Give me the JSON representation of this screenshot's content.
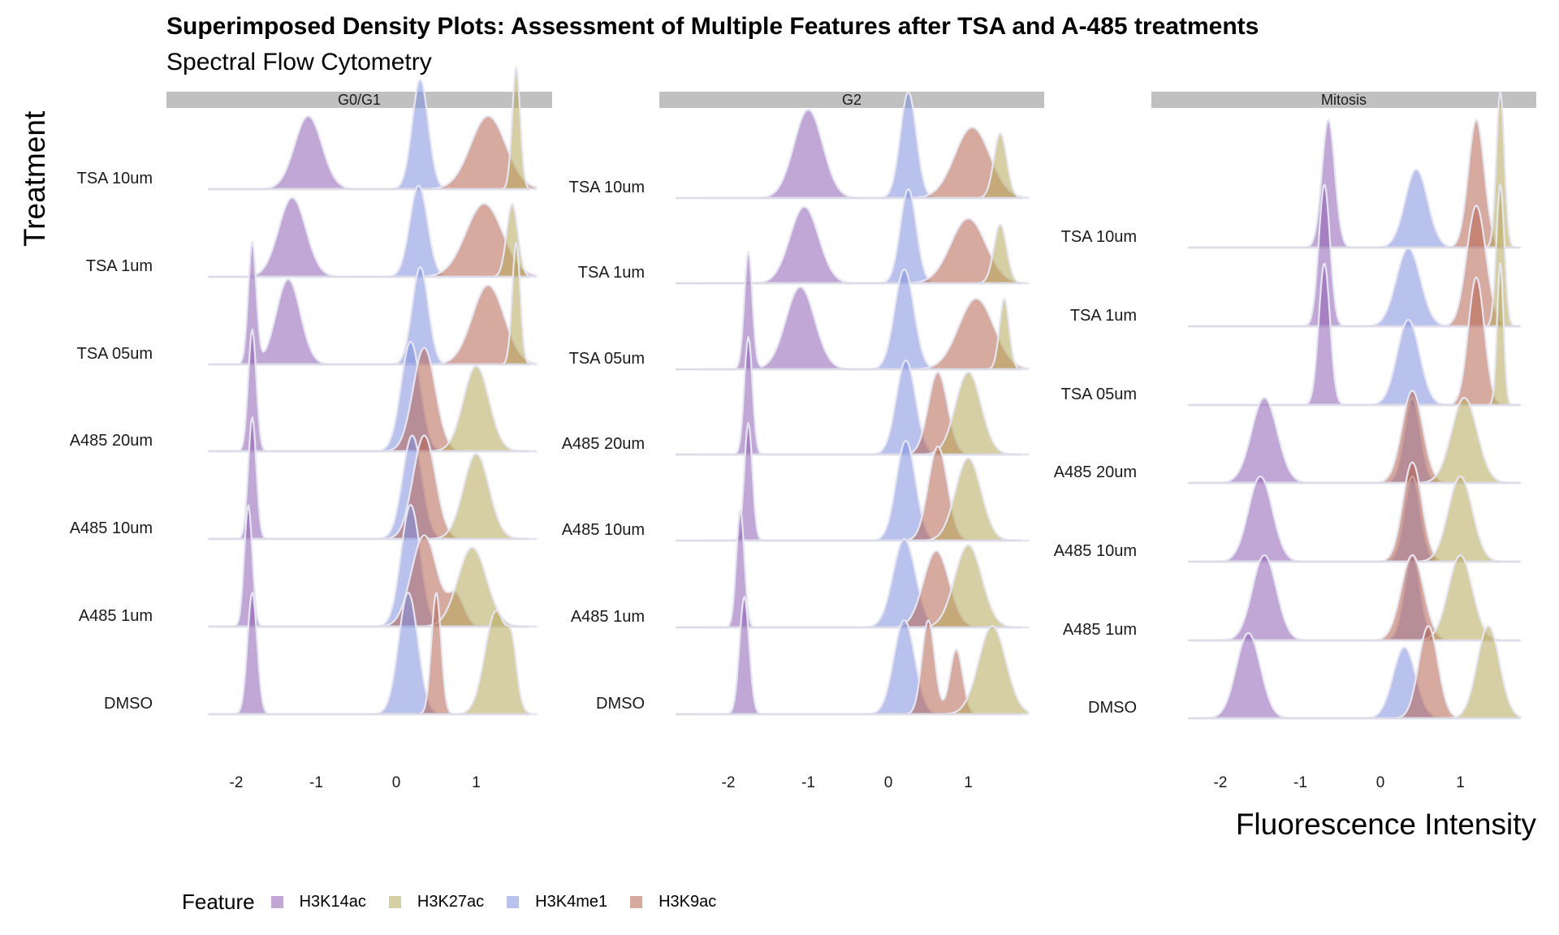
{
  "chart_data": {
    "type": "ridgeline-density",
    "title": "Superimposed Density Plots: Assessment of Multiple Features after TSA and A-485 treatments",
    "subtitle": "Spectral Flow Cytometry",
    "xlabel": "Fluorescence Intensity",
    "ylabel": "Treatment",
    "x_ticks": [
      -2,
      -1,
      0,
      1
    ],
    "xlim": [
      -2.35,
      1.75
    ],
    "treatments": [
      "DMSO",
      "A485 1um",
      "A485 10um",
      "A485 20um",
      "TSA 05um",
      "TSA 1um",
      "TSA 10um"
    ],
    "legend": {
      "title": "Feature",
      "position": "bottom-left",
      "items": [
        {
          "name": "H3K14ac",
          "color": "#8e5fb3"
        },
        {
          "name": "H3K27ac",
          "color": "#b7a75a"
        },
        {
          "name": "H3K4me1",
          "color": "#7f90de"
        },
        {
          "name": "H3K9ac",
          "color": "#b76450"
        }
      ]
    },
    "panels": [
      {
        "facet": "G0/G1",
        "ridges": {
          "DMSO": {
            "H3K14ac": [
              [
                -1.8,
                0.06,
                1
              ]
            ],
            "H3K4me1": [
              [
                0.15,
                0.12,
                1
              ]
            ],
            "H3K9ac": [
              [
                0.5,
                0.06,
                1
              ]
            ],
            "H3K27ac": [
              [
                1.25,
                0.14,
                0.85
              ],
              [
                1.45,
                0.06,
                0.35
              ]
            ]
          },
          "A485 1um": {
            "H3K14ac": [
              [
                -1.85,
                0.05,
                1
              ]
            ],
            "H3K4me1": [
              [
                0.18,
                0.12,
                1
              ]
            ],
            "H3K9ac": [
              [
                0.35,
                0.16,
                0.75
              ],
              [
                0.75,
                0.1,
                0.25
              ]
            ],
            "H3K27ac": [
              [
                0.95,
                0.18,
                0.65
              ]
            ]
          },
          "A485 10um": {
            "H3K14ac": [
              [
                -1.8,
                0.05,
                1
              ]
            ],
            "H3K4me1": [
              [
                0.2,
                0.12,
                0.85
              ]
            ],
            "H3K9ac": [
              [
                0.35,
                0.14,
                0.85
              ]
            ],
            "H3K27ac": [
              [
                1.0,
                0.16,
                0.7
              ]
            ]
          },
          "A485 20um": {
            "H3K14ac": [
              [
                -1.8,
                0.05,
                1
              ]
            ],
            "H3K4me1": [
              [
                0.18,
                0.12,
                0.9
              ]
            ],
            "H3K9ac": [
              [
                0.35,
                0.14,
                0.85
              ]
            ],
            "H3K27ac": [
              [
                1.0,
                0.16,
                0.7
              ]
            ]
          },
          "TSA 05um": {
            "H3K14ac": [
              [
                -1.35,
                0.15,
                0.7
              ],
              [
                -1.8,
                0.05,
                1.0
              ]
            ],
            "H3K4me1": [
              [
                0.3,
                0.1,
                0.8
              ]
            ],
            "H3K9ac": [
              [
                1.15,
                0.2,
                0.65
              ]
            ],
            "H3K27ac": [
              [
                1.5,
                0.05,
                1.0
              ]
            ]
          },
          "TSA 1um": {
            "H3K14ac": [
              [
                -1.3,
                0.17,
                0.65
              ]
            ],
            "H3K4me1": [
              [
                0.28,
                0.11,
                0.75
              ]
            ],
            "H3K9ac": [
              [
                1.1,
                0.23,
                0.6
              ]
            ],
            "H3K27ac": [
              [
                1.45,
                0.07,
                0.6
              ]
            ]
          },
          "TSA 10um": {
            "H3K14ac": [
              [
                -1.1,
                0.17,
                0.6
              ]
            ],
            "H3K4me1": [
              [
                0.3,
                0.1,
                0.9
              ]
            ],
            "H3K9ac": [
              [
                1.15,
                0.22,
                0.6
              ]
            ],
            "H3K27ac": [
              [
                1.5,
                0.05,
                1.0
              ]
            ]
          }
        }
      },
      {
        "facet": "G2",
        "ridges": {
          "DMSO": {
            "H3K14ac": [
              [
                -1.8,
                0.06,
                1
              ]
            ],
            "H3K4me1": [
              [
                0.2,
                0.13,
                0.8
              ]
            ],
            "H3K9ac": [
              [
                0.5,
                0.08,
                0.8
              ],
              [
                0.85,
                0.08,
                0.55
              ]
            ],
            "H3K27ac": [
              [
                1.3,
                0.17,
                0.75
              ]
            ]
          },
          "A485 1um": {
            "H3K14ac": [
              [
                -1.85,
                0.05,
                1
              ]
            ],
            "H3K4me1": [
              [
                0.2,
                0.14,
                0.75
              ]
            ],
            "H3K9ac": [
              [
                0.6,
                0.16,
                0.65
              ]
            ],
            "H3K27ac": [
              [
                1.0,
                0.17,
                0.7
              ]
            ]
          },
          "A485 10um": {
            "H3K14ac": [
              [
                -1.75,
                0.05,
                1
              ]
            ],
            "H3K4me1": [
              [
                0.22,
                0.12,
                0.85
              ]
            ],
            "H3K9ac": [
              [
                0.62,
                0.12,
                0.8
              ]
            ],
            "H3K27ac": [
              [
                1.0,
                0.16,
                0.7
              ]
            ]
          },
          "A485 20um": {
            "H3K14ac": [
              [
                -1.75,
                0.05,
                1
              ]
            ],
            "H3K4me1": [
              [
                0.22,
                0.12,
                0.8
              ]
            ],
            "H3K9ac": [
              [
                0.62,
                0.12,
                0.7
              ]
            ],
            "H3K27ac": [
              [
                1.0,
                0.16,
                0.7
              ]
            ]
          },
          "TSA 05um": {
            "H3K14ac": [
              [
                -1.1,
                0.18,
                0.7
              ],
              [
                -1.75,
                0.05,
                1.0
              ]
            ],
            "H3K4me1": [
              [
                0.2,
                0.12,
                0.85
              ]
            ],
            "H3K9ac": [
              [
                1.1,
                0.22,
                0.6
              ]
            ],
            "H3K27ac": [
              [
                1.45,
                0.06,
                0.6
              ]
            ]
          },
          "TSA 1um": {
            "H3K14ac": [
              [
                -1.05,
                0.18,
                0.65
              ]
            ],
            "H3K4me1": [
              [
                0.25,
                0.1,
                0.8
              ]
            ],
            "H3K9ac": [
              [
                1.0,
                0.22,
                0.55
              ]
            ],
            "H3K27ac": [
              [
                1.4,
                0.08,
                0.5
              ]
            ]
          },
          "TSA 10um": {
            "H3K14ac": [
              [
                -1.0,
                0.18,
                0.75
              ]
            ],
            "H3K4me1": [
              [
                0.25,
                0.1,
                0.9
              ]
            ],
            "H3K9ac": [
              [
                1.05,
                0.22,
                0.6
              ]
            ],
            "H3K27ac": [
              [
                1.4,
                0.08,
                0.55
              ]
            ]
          }
        }
      },
      {
        "facet": "Mitosis",
        "ridges": {
          "DMSO": {
            "H3K14ac": [
              [
                -1.65,
                0.15,
                0.6
              ]
            ],
            "H3K4me1": [
              [
                0.3,
                0.14,
                0.5
              ]
            ],
            "H3K9ac": [
              [
                0.6,
                0.12,
                0.65
              ]
            ],
            "H3K27ac": [
              [
                1.35,
                0.14,
                0.65
              ]
            ]
          },
          "A485 1um": {
            "H3K14ac": [
              [
                -1.45,
                0.15,
                0.6
              ]
            ],
            "H3K4me1": [
              [
                0.4,
                0.1,
                0.6
              ]
            ],
            "H3K9ac": [
              [
                0.4,
                0.14,
                0.6
              ]
            ],
            "H3K27ac": [
              [
                1.0,
                0.15,
                0.6
              ]
            ]
          },
          "A485 10um": {
            "H3K14ac": [
              [
                -1.5,
                0.15,
                0.6
              ]
            ],
            "H3K4me1": [
              [
                0.4,
                0.1,
                0.6
              ]
            ],
            "H3K9ac": [
              [
                0.4,
                0.12,
                0.7
              ]
            ],
            "H3K27ac": [
              [
                1.0,
                0.15,
                0.6
              ]
            ]
          },
          "A485 20um": {
            "H3K14ac": [
              [
                -1.45,
                0.16,
                0.6
              ]
            ],
            "H3K4me1": [
              [
                0.4,
                0.1,
                0.6
              ]
            ],
            "H3K9ac": [
              [
                0.4,
                0.13,
                0.65
              ]
            ],
            "H3K27ac": [
              [
                1.05,
                0.16,
                0.6
              ]
            ]
          },
          "TSA 05um": {
            "H3K14ac": [
              [
                -0.7,
                0.07,
                1.0
              ]
            ],
            "H3K4me1": [
              [
                0.35,
                0.14,
                0.6
              ]
            ],
            "H3K9ac": [
              [
                1.2,
                0.1,
                0.9
              ]
            ],
            "H3K27ac": [
              [
                1.5,
                0.04,
                1.0
              ]
            ]
          },
          "TSA 1um": {
            "H3K14ac": [
              [
                -0.7,
                0.07,
                1.0
              ]
            ],
            "H3K4me1": [
              [
                0.35,
                0.15,
                0.55
              ]
            ],
            "H3K9ac": [
              [
                1.2,
                0.12,
                0.85
              ]
            ],
            "H3K27ac": [
              [
                1.5,
                0.05,
                1.0
              ]
            ]
          },
          "TSA 10um": {
            "H3K14ac": [
              [
                -0.65,
                0.08,
                0.9
              ]
            ],
            "H3K4me1": [
              [
                0.45,
                0.14,
                0.55
              ]
            ],
            "H3K9ac": [
              [
                1.2,
                0.1,
                0.9
              ]
            ],
            "H3K27ac": [
              [
                1.5,
                0.05,
                1.1
              ]
            ]
          }
        }
      }
    ]
  }
}
